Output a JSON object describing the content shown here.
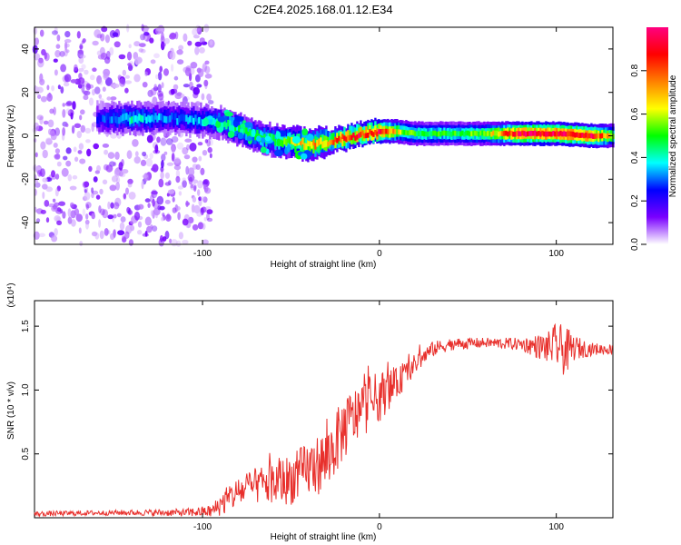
{
  "title": "C2E4.2025.168.01.12.E34",
  "chart_data": [
    {
      "type": "heatmap",
      "xlabel": "Height of straight line (km)",
      "ylabel": "Frequency (Hz)",
      "xlim": [
        -195,
        132
      ],
      "ylim": [
        -50,
        50
      ],
      "xticks": [
        -100,
        0,
        100
      ],
      "xtick_labels": [
        "-100",
        "0",
        "100"
      ],
      "yticks": [
        -40,
        -20,
        0,
        20,
        40
      ],
      "ytick_labels": [
        "-40",
        "-20",
        "0",
        "20",
        "40"
      ],
      "noise_region_x": [
        -195,
        -95
      ],
      "signal_centerline": {
        "x": [
          -160,
          -140,
          -120,
          -100,
          -90,
          -80,
          -70,
          -60,
          -50,
          -40,
          -30,
          -20,
          -10,
          0,
          10,
          20,
          40,
          60,
          80,
          100,
          120,
          132
        ],
        "y": [
          8,
          8,
          8,
          7,
          6,
          3,
          0,
          -2,
          -3,
          -4,
          -3,
          -1,
          1,
          2,
          2,
          1,
          1,
          1,
          1,
          1,
          0,
          0
        ],
        "peak_amplitude": [
          0.25,
          0.4,
          0.3,
          0.35,
          0.4,
          0.45,
          0.45,
          0.45,
          0.6,
          0.7,
          0.7,
          0.85,
          0.9,
          0.95,
          0.6,
          0.5,
          0.5,
          0.55,
          0.95,
          0.95,
          0.9,
          0.6
        ]
      },
      "colorbar": {
        "label": "Normalized spectral amplitude",
        "range": [
          0,
          1
        ],
        "ticks": [
          0,
          0.2,
          0.4,
          0.6,
          0.8
        ],
        "tick_labels": [
          "0.0",
          "0.2",
          "0.4",
          "0.6",
          "0.8"
        ],
        "colors": [
          "#ffffff",
          "#7a00ff",
          "#0000ff",
          "#00ffff",
          "#00ff00",
          "#ffff00",
          "#ff8000",
          "#ff0000",
          "#ff0080"
        ]
      }
    },
    {
      "type": "line",
      "xlabel": "Height of straight line (km)",
      "ylabel": "SNR (10 * v/v)",
      "y_multiplier_label": "(x10⁴)",
      "xlim": [
        -195,
        132
      ],
      "ylim": [
        0,
        1.7
      ],
      "xticks": [
        -100,
        0,
        100
      ],
      "xtick_labels": [
        "-100",
        "0",
        "100"
      ],
      "yticks": [
        0.5,
        1.0,
        1.5
      ],
      "ytick_labels": [
        "0.5",
        "1.0",
        "1.5"
      ],
      "series": [
        {
          "name": "SNR",
          "color": "#e8302c",
          "x": [
            -195,
            -150,
            -110,
            -95,
            -88,
            -80,
            -70,
            -60,
            -50,
            -40,
            -30,
            -20,
            -10,
            0,
            10,
            20,
            30,
            40,
            60,
            80,
            95,
            100,
            105,
            110,
            120,
            132
          ],
          "y": [
            0.03,
            0.04,
            0.04,
            0.05,
            0.12,
            0.2,
            0.25,
            0.27,
            0.3,
            0.38,
            0.45,
            0.7,
            0.85,
            0.95,
            1.05,
            1.2,
            1.32,
            1.36,
            1.37,
            1.36,
            1.33,
            1.35,
            1.3,
            1.33,
            1.32,
            1.32
          ],
          "noise": [
            0.02,
            0.02,
            0.03,
            0.05,
            0.1,
            0.12,
            0.14,
            0.18,
            0.2,
            0.22,
            0.25,
            0.25,
            0.22,
            0.2,
            0.12,
            0.08,
            0.06,
            0.05,
            0.04,
            0.05,
            0.12,
            0.18,
            0.2,
            0.1,
            0.05,
            0.04
          ]
        }
      ]
    }
  ]
}
